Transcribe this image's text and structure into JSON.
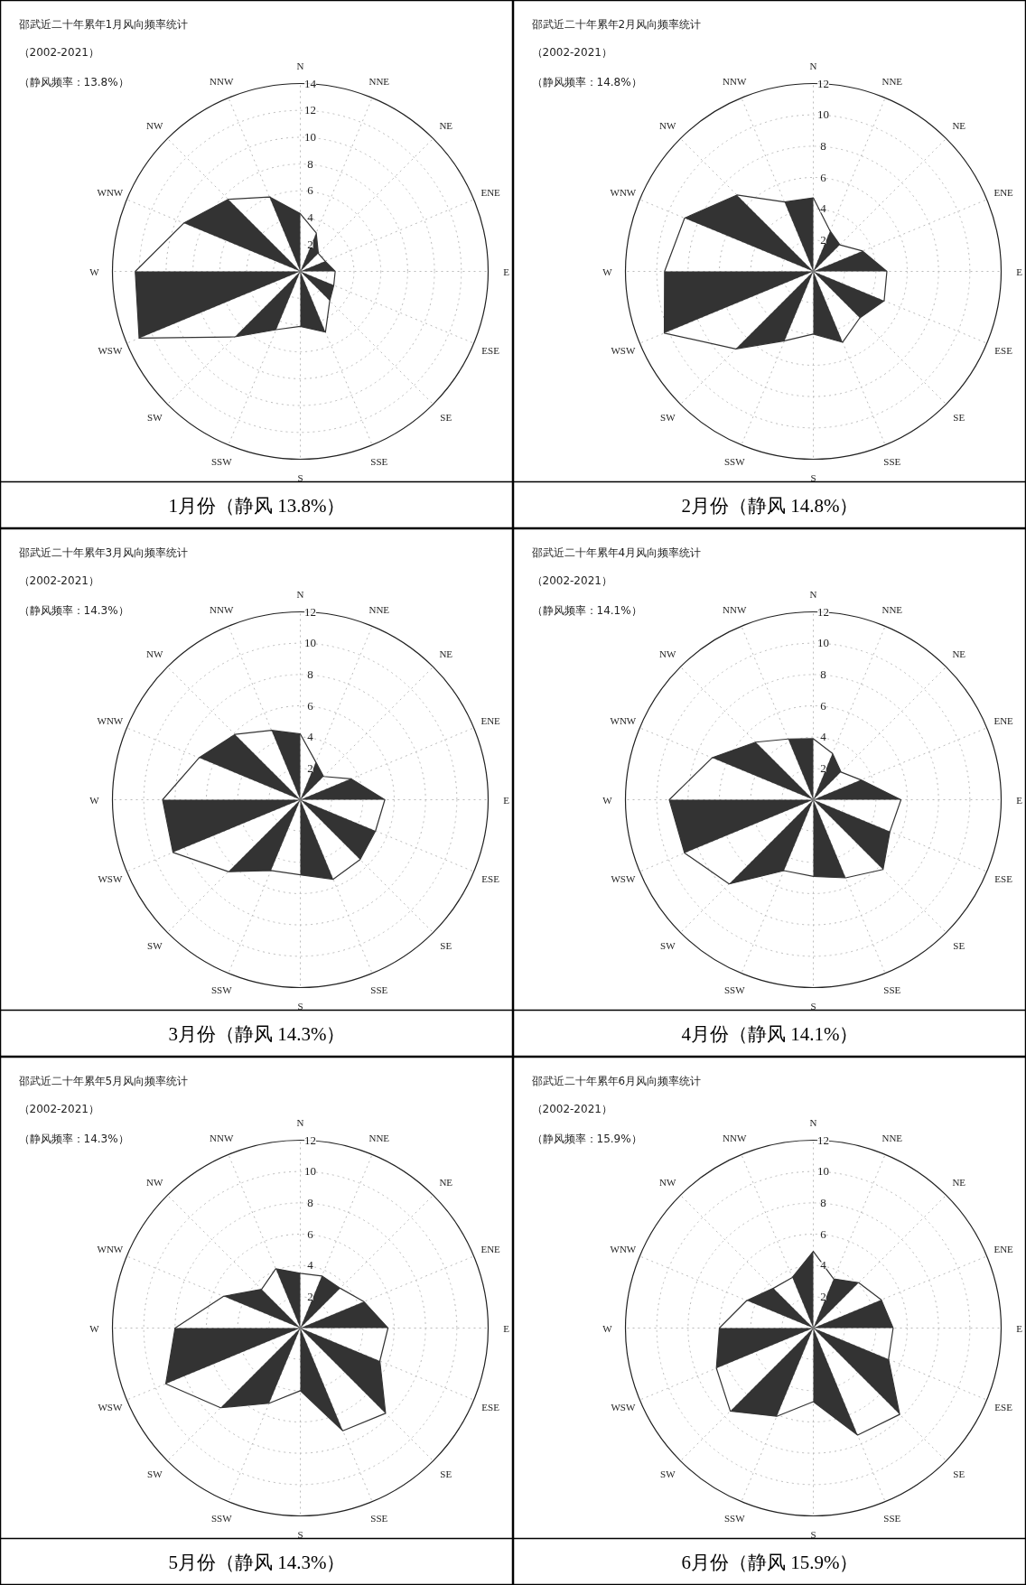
{
  "chart_data": [
    {
      "type": "radar",
      "title": "邵武近二十年累年1月风向频率统计",
      "subtitle": "（2002-2021）",
      "annotations": [
        "（静风频率：13.8%）",
        "1月份（静风 13.8%）"
      ],
      "categories": [
        "N",
        "NNE",
        "NE",
        "ENE",
        "E",
        "ESE",
        "SE",
        "SSE",
        "S",
        "SSW",
        "SW",
        "WSW",
        "W",
        "WNW",
        "NW",
        "NNW"
      ],
      "ylim": [
        0,
        14
      ],
      "yticks": [
        2,
        4,
        6,
        8,
        10,
        12,
        14
      ],
      "grid": true,
      "series": [
        {
          "color": "#333333",
          "values": [
            4.3,
            3.1,
            1.9,
            2.0,
            2.6,
            2.7,
            3.1,
            4.9,
            4.1,
            4.7,
            6.9,
            13.0,
            12.3,
            9.4,
            7.6,
            6.0
          ]
        }
      ]
    },
    {
      "type": "radar",
      "title": "邵武近二十年累年2月风向频率统计",
      "subtitle": "（2002-2021）",
      "annotations": [
        "（静风频率：14.8%）",
        "2月份（静风 14.8%）"
      ],
      "categories": [
        "N",
        "NNE",
        "NE",
        "ENE",
        "E",
        "ESE",
        "SE",
        "SSE",
        "S",
        "SSW",
        "SW",
        "WSW",
        "W",
        "WNW",
        "NW",
        "NNW"
      ],
      "ylim": [
        0,
        12
      ],
      "yticks": [
        2,
        4,
        6,
        8,
        10,
        12
      ],
      "grid": true,
      "series": [
        {
          "color": "#333333",
          "values": [
            4.7,
            2.8,
            2.4,
            3.4,
            4.7,
            4.9,
            4.2,
            4.9,
            4.0,
            4.8,
            7.0,
            10.3,
            9.5,
            8.9,
            6.9,
            4.8
          ]
        }
      ]
    },
    {
      "type": "radar",
      "title": "邵武近二十年累年3月风向频率统计",
      "subtitle": "（2002-2021）",
      "annotations": [
        "（静风频率：14.3%）",
        "3月份（静风 14.3%）"
      ],
      "categories": [
        "N",
        "NNE",
        "NE",
        "ENE",
        "E",
        "ESE",
        "SE",
        "SSE",
        "S",
        "SSW",
        "SW",
        "WSW",
        "W",
        "WNW",
        "NW",
        "NNW"
      ],
      "ylim": [
        0,
        12
      ],
      "yticks": [
        2,
        4,
        6,
        8,
        10,
        12
      ],
      "grid": true,
      "series": [
        {
          "color": "#333333",
          "values": [
            4.2,
            2.6,
            2.1,
            3.5,
            5.4,
            5.2,
            5.4,
            5.5,
            4.8,
            4.9,
            6.5,
            8.8,
            8.8,
            7.0,
            5.9,
            4.8
          ]
        }
      ]
    },
    {
      "type": "radar",
      "title": "邵武近二十年累年4月风向频率统计",
      "subtitle": "（2002-2021）",
      "annotations": [
        "（静风频率：14.1%）",
        "4月份（静风 14.1%）"
      ],
      "categories": [
        "N",
        "NNE",
        "NE",
        "ENE",
        "E",
        "ESE",
        "SE",
        "SSE",
        "S",
        "SSW",
        "SW",
        "WSW",
        "W",
        "WNW",
        "NW",
        "NNW"
      ],
      "ylim": [
        0,
        12
      ],
      "yticks": [
        2,
        4,
        6,
        8,
        10,
        12
      ],
      "grid": true,
      "series": [
        {
          "color": "#333333",
          "values": [
            3.9,
            3.2,
            2.5,
            3.3,
            5.6,
            5.3,
            6.3,
            5.4,
            4.9,
            4.9,
            7.6,
            8.9,
            9.2,
            7.0,
            5.2,
            4.2
          ]
        }
      ]
    },
    {
      "type": "radar",
      "title": "邵武近二十年累年5月风向频率统计",
      "subtitle": "（2002-2021）",
      "annotations": [
        "（静风频率：14.3%）",
        "5月份（静风 14.3%）"
      ],
      "categories": [
        "N",
        "NNE",
        "NE",
        "ENE",
        "E",
        "ESE",
        "SE",
        "SSE",
        "S",
        "SSW",
        "SW",
        "WSW",
        "W",
        "WNW",
        "NW",
        "NNW"
      ],
      "ylim": [
        0,
        12
      ],
      "yticks": [
        2,
        4,
        6,
        8,
        10,
        12
      ],
      "grid": true,
      "series": [
        {
          "color": "#333333",
          "values": [
            3.5,
            3.6,
            3.6,
            4.4,
            5.6,
            5.5,
            7.7,
            7.1,
            4.0,
            5.2,
            7.2,
            9.3,
            8.0,
            5.3,
            3.5,
            4.1
          ]
        }
      ]
    },
    {
      "type": "radar",
      "title": "邵武近二十年累年6月风向频率统计",
      "subtitle": "（2002-2021）",
      "annotations": [
        "（静风频率：15.9%）",
        "6月份（静风 15.9%）"
      ],
      "categories": [
        "N",
        "NNE",
        "NE",
        "ENE",
        "E",
        "ESE",
        "SE",
        "SSE",
        "S",
        "SSW",
        "SW",
        "WSW",
        "W",
        "WNW",
        "NW",
        "NNW"
      ],
      "ylim": [
        0,
        12
      ],
      "yticks": [
        2,
        4,
        6,
        8,
        10,
        12
      ],
      "grid": true,
      "series": [
        {
          "color": "#333333",
          "values": [
            4.9,
            3.4,
            4.1,
            4.7,
            5.1,
            5.2,
            7.8,
            7.4,
            4.7,
            6.1,
            7.5,
            6.7,
            6.0,
            4.6,
            3.6,
            3.5
          ]
        }
      ]
    }
  ]
}
